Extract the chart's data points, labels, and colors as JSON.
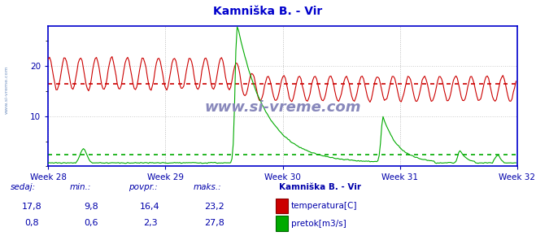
{
  "title": "Kamniška B. - Vir",
  "title_color": "#0000cc",
  "bg_color": "#ffffff",
  "plot_bg_color": "#ffffff",
  "grid_color": "#dddddd",
  "border_color": "#0000cc",
  "xlabel_color": "#0000aa",
  "ylabel_color": "#0000aa",
  "temp_color": "#cc0000",
  "flow_color": "#00aa00",
  "avg_temp_color": "#cc0000",
  "avg_flow_color": "#00aa00",
  "avg_temp": 16.4,
  "avg_flow": 2.3,
  "ylim_max": 28,
  "yticks": [
    10,
    20
  ],
  "n_points": 360,
  "week_labels": [
    "Week 28",
    "Week 29",
    "Week 30",
    "Week 31",
    "Week 32"
  ],
  "week_positions": [
    0,
    90,
    180,
    270,
    360
  ],
  "watermark": "www.si-vreme.com",
  "watermark_color": "#8888bb",
  "sidebar_text": "www.si-vreme.com",
  "legend_title": "Kamniška B. - Vir",
  "legend_title_color": "#0000aa",
  "footer_labels": [
    "sedaj:",
    "min.:",
    "povpr.:",
    "maks.:"
  ],
  "footer_temp": [
    "17,8",
    "9,8",
    "16,4",
    "23,2"
  ],
  "footer_flow": [
    "0,8",
    "0,6",
    "2,3",
    "27,8"
  ],
  "footer_color": "#0000aa",
  "temp_label": "temperatura[C]",
  "flow_label": "pretok[m3/s]"
}
